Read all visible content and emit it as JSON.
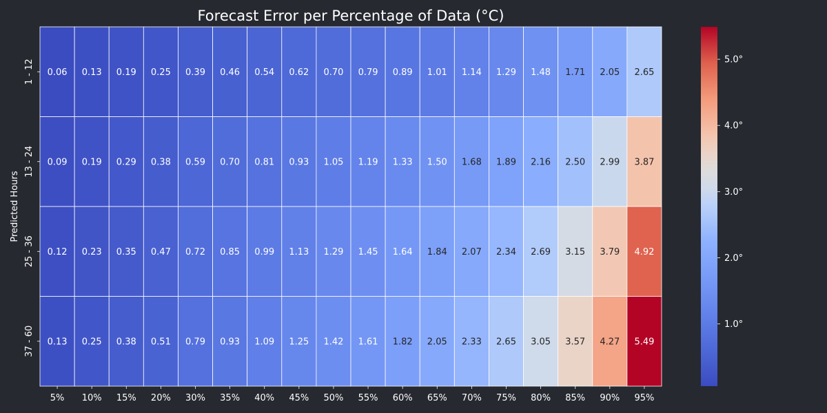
{
  "chart_data": {
    "type": "heatmap",
    "title": "Forecast Error per Percentage of Data (°C)",
    "xlabel": "",
    "ylabel": "Predicted Hours",
    "x_categories": [
      "5%",
      "10%",
      "15%",
      "20%",
      "30%",
      "35%",
      "40%",
      "45%",
      "50%",
      "55%",
      "60%",
      "65%",
      "70%",
      "75%",
      "80%",
      "85%",
      "90%",
      "95%"
    ],
    "y_categories": [
      "1 - 12",
      "13 - 24",
      "25 - 36",
      "37 - 60"
    ],
    "values": [
      [
        0.06,
        0.13,
        0.19,
        0.25,
        0.39,
        0.46,
        0.54,
        0.62,
        0.7,
        0.79,
        0.89,
        1.01,
        1.14,
        1.29,
        1.48,
        1.71,
        2.05,
        2.65
      ],
      [
        0.09,
        0.19,
        0.29,
        0.38,
        0.59,
        0.7,
        0.81,
        0.93,
        1.05,
        1.19,
        1.33,
        1.5,
        1.68,
        1.89,
        2.16,
        2.5,
        2.99,
        3.87
      ],
      [
        0.12,
        0.23,
        0.35,
        0.47,
        0.72,
        0.85,
        0.99,
        1.13,
        1.29,
        1.45,
        1.64,
        1.84,
        2.07,
        2.34,
        2.69,
        3.15,
        3.79,
        4.92
      ],
      [
        0.13,
        0.25,
        0.38,
        0.51,
        0.79,
        0.93,
        1.09,
        1.25,
        1.42,
        1.61,
        1.82,
        2.05,
        2.33,
        2.65,
        3.05,
        3.57,
        4.27,
        5.49
      ]
    ],
    "value_format": "2 decimals",
    "colormap": "coolwarm",
    "color_range": [
      0.06,
      5.49
    ],
    "colorbar_ticks": [
      1.0,
      2.0,
      3.0,
      4.0,
      5.0
    ],
    "colorbar_tick_labels": [
      "1.0°",
      "2.0°",
      "3.0°",
      "4.0°",
      "5.0°"
    ],
    "grid": true,
    "colors": {
      "background": "#262930",
      "text": "#ffffff",
      "cell_border": "#ffffff",
      "dark_text": "#262626"
    }
  }
}
